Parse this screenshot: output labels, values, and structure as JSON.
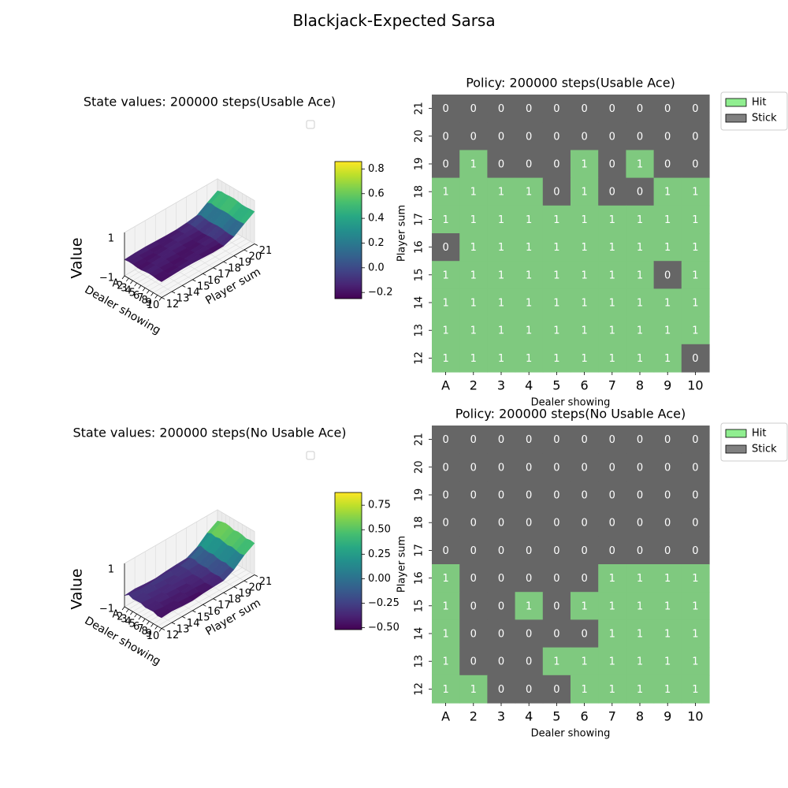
{
  "figure_title": "Blackjack-Expected Sarsa",
  "chart_data": [
    {
      "type": "surface3d",
      "title": "State values: 200000 steps(Usable Ace)",
      "xlabel": "Dealer showing",
      "ylabel": "Player sum",
      "zlabel": "Value",
      "x_ticks": [
        "A",
        "2",
        "3",
        "4",
        "5",
        "6",
        "7",
        "8",
        "9",
        "10"
      ],
      "y_ticks": [
        "12",
        "13",
        "14",
        "15",
        "16",
        "17",
        "18",
        "19",
        "20",
        "21"
      ],
      "z_ticks": [
        "−1",
        "1"
      ],
      "colorbar_ticks": [
        "−0.2",
        "0.0",
        "0.2",
        "0.4",
        "0.6",
        "0.8"
      ],
      "colorbar_range": [
        -0.25,
        0.86
      ],
      "colormap": "viridis",
      "legend": "upper right (empty)"
    },
    {
      "type": "heatmap",
      "title": "Policy: 200000 steps(Usable Ace)",
      "xlabel": "Dealer showing",
      "ylabel": "Player sum",
      "x_ticks": [
        "A",
        "2",
        "3",
        "4",
        "5",
        "6",
        "7",
        "8",
        "9",
        "10"
      ],
      "y_ticks": [
        "21",
        "20",
        "19",
        "18",
        "17",
        "16",
        "15",
        "14",
        "13",
        "12"
      ],
      "rows": [
        [
          0,
          0,
          0,
          0,
          0,
          0,
          0,
          0,
          0,
          0
        ],
        [
          0,
          0,
          0,
          0,
          0,
          0,
          0,
          0,
          0,
          0
        ],
        [
          0,
          1,
          0,
          0,
          0,
          1,
          0,
          1,
          0,
          0
        ],
        [
          1,
          1,
          1,
          1,
          0,
          1,
          0,
          0,
          1,
          1
        ],
        [
          1,
          1,
          1,
          1,
          1,
          1,
          1,
          1,
          1,
          1
        ],
        [
          0,
          1,
          1,
          1,
          1,
          1,
          1,
          1,
          1,
          1
        ],
        [
          1,
          1,
          1,
          1,
          1,
          1,
          1,
          1,
          0,
          1
        ],
        [
          1,
          1,
          1,
          1,
          1,
          1,
          1,
          1,
          1,
          1
        ],
        [
          1,
          1,
          1,
          1,
          1,
          1,
          1,
          1,
          1,
          1
        ],
        [
          1,
          1,
          1,
          1,
          1,
          1,
          1,
          1,
          1,
          0
        ]
      ],
      "legend": [
        {
          "label": "Hit",
          "color": "#90ee90"
        },
        {
          "label": "Stick",
          "color": "#808080"
        }
      ],
      "cell_colors": {
        "1": "#7fc97f",
        "0": "#666666"
      }
    },
    {
      "type": "surface3d",
      "title": "State values: 200000 steps(No Usable Ace)",
      "xlabel": "Dealer showing",
      "ylabel": "Player sum",
      "zlabel": "Value",
      "x_ticks": [
        "A",
        "2",
        "3",
        "4",
        "5",
        "6",
        "7",
        "8",
        "9",
        "10"
      ],
      "y_ticks": [
        "12",
        "13",
        "14",
        "15",
        "16",
        "17",
        "18",
        "19",
        "20",
        "21"
      ],
      "z_ticks": [
        "−1",
        "1"
      ],
      "colorbar_ticks": [
        "−0.50",
        "−0.25",
        "0.00",
        "0.25",
        "0.50",
        "0.75"
      ],
      "colorbar_range": [
        -0.52,
        0.88
      ],
      "colormap": "viridis",
      "legend": "upper right (empty)"
    },
    {
      "type": "heatmap",
      "title": "Policy: 200000 steps(No Usable Ace)",
      "xlabel": "Dealer showing",
      "ylabel": "Player sum",
      "x_ticks": [
        "A",
        "2",
        "3",
        "4",
        "5",
        "6",
        "7",
        "8",
        "9",
        "10"
      ],
      "y_ticks": [
        "21",
        "20",
        "19",
        "18",
        "17",
        "16",
        "15",
        "14",
        "13",
        "12"
      ],
      "rows": [
        [
          0,
          0,
          0,
          0,
          0,
          0,
          0,
          0,
          0,
          0
        ],
        [
          0,
          0,
          0,
          0,
          0,
          0,
          0,
          0,
          0,
          0
        ],
        [
          0,
          0,
          0,
          0,
          0,
          0,
          0,
          0,
          0,
          0
        ],
        [
          0,
          0,
          0,
          0,
          0,
          0,
          0,
          0,
          0,
          0
        ],
        [
          0,
          0,
          0,
          0,
          0,
          0,
          0,
          0,
          0,
          0
        ],
        [
          1,
          0,
          0,
          0,
          0,
          0,
          1,
          1,
          1,
          1
        ],
        [
          1,
          0,
          0,
          1,
          0,
          1,
          1,
          1,
          1,
          1
        ],
        [
          1,
          0,
          0,
          0,
          0,
          0,
          1,
          1,
          1,
          1
        ],
        [
          1,
          0,
          0,
          0,
          1,
          1,
          1,
          1,
          1,
          1
        ],
        [
          1,
          1,
          0,
          0,
          0,
          1,
          1,
          1,
          1,
          1
        ]
      ],
      "legend": [
        {
          "label": "Hit",
          "color": "#90ee90"
        },
        {
          "label": "Stick",
          "color": "#808080"
        }
      ],
      "cell_colors": {
        "1": "#7fc97f",
        "0": "#666666"
      }
    }
  ]
}
